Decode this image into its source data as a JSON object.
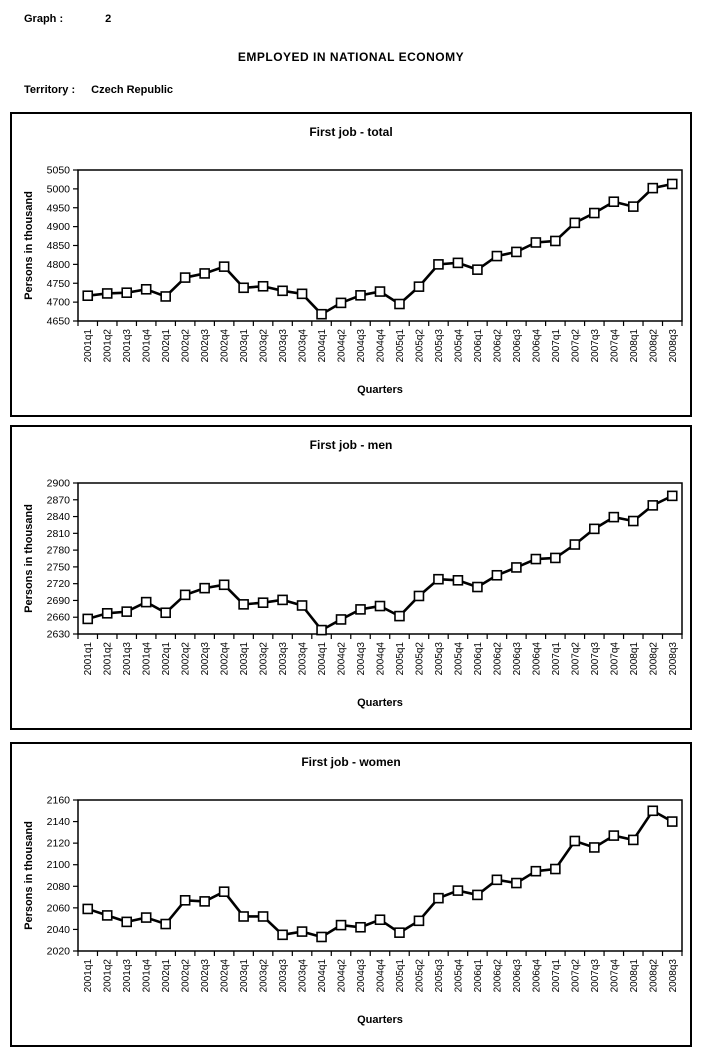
{
  "header": {
    "graph_label": "Graph :",
    "graph_number": "2",
    "title": "EMPLOYED IN NATIONAL ECONOMY",
    "territory_label": "Territory :",
    "territory_value": "Czech Republic"
  },
  "colors": {
    "line": "#000000",
    "marker_fill": "#ffffff",
    "marker_stroke": "#000000",
    "frame": "#000000",
    "text": "#000000"
  },
  "chart_data": [
    {
      "type": "line",
      "name": "total",
      "title": "First job - total",
      "xlabel": "Quarters",
      "ylabel": "Persons in thousand",
      "ylim": [
        4650,
        5050
      ],
      "ytick_step": 50,
      "grid": false,
      "legend": "none",
      "marker": "square",
      "categories": [
        "2001q1",
        "2001q2",
        "2001q3",
        "2001q4",
        "2002q1",
        "2002q2",
        "2002q3",
        "2002q4",
        "2003q1",
        "2003q2",
        "2003q3",
        "2003q4",
        "2004q1",
        "2004q2",
        "2004q3",
        "2004q4",
        "2005q1",
        "2005q2",
        "2005q3",
        "2005q4",
        "2006q1",
        "2006q2",
        "2006q3",
        "2006q4",
        "2007q1",
        "2007q2",
        "2007q3",
        "2007q4",
        "2008q1",
        "2008q2",
        "2008q3"
      ],
      "values": [
        4717,
        4723,
        4725,
        4734,
        4715,
        4765,
        4776,
        4794,
        4738,
        4742,
        4730,
        4722,
        4668,
        4698,
        4718,
        4728,
        4695,
        4741,
        4800,
        4804,
        4786,
        4822,
        4833,
        4858,
        4862,
        4910,
        4936,
        4966,
        4953,
        5002,
        5013
      ]
    },
    {
      "type": "line",
      "name": "men",
      "title": "First job - men",
      "xlabel": "Quarters",
      "ylabel": "Persons in thousand",
      "ylim": [
        2630,
        2900
      ],
      "ytick_step": 30,
      "grid": false,
      "legend": "none",
      "marker": "square",
      "categories": [
        "2001q1",
        "2001q2",
        "2001q3",
        "2001q4",
        "2002q1",
        "2002q2",
        "2002q3",
        "2002q4",
        "2003q1",
        "2003q2",
        "2003q3",
        "2003q4",
        "2004q1",
        "2004q2",
        "2004q3",
        "2004q4",
        "2005q1",
        "2005q2",
        "2005q3",
        "2005q4",
        "2006q1",
        "2006q2",
        "2006q3",
        "2006q4",
        "2007q1",
        "2007q2",
        "2007q3",
        "2007q4",
        "2008q1",
        "2008q2",
        "2008q3"
      ],
      "values": [
        2657,
        2667,
        2670,
        2687,
        2668,
        2700,
        2712,
        2718,
        2683,
        2686,
        2691,
        2681,
        2637,
        2656,
        2674,
        2680,
        2662,
        2698,
        2728,
        2726,
        2714,
        2735,
        2749,
        2764,
        2766,
        2790,
        2818,
        2839,
        2832,
        2860,
        2877
      ]
    },
    {
      "type": "line",
      "name": "women",
      "title": "First job - women",
      "xlabel": "Quarters",
      "ylabel": "Persons in thousand",
      "ylim": [
        2020,
        2160
      ],
      "ytick_step": 20,
      "grid": false,
      "legend": "none",
      "marker": "square",
      "categories": [
        "2001q1",
        "2001q2",
        "2001q3",
        "2001q4",
        "2002q1",
        "2002q2",
        "2002q3",
        "2002q4",
        "2003q1",
        "2003q2",
        "2003q3",
        "2003q4",
        "2004q1",
        "2004q2",
        "2004q3",
        "2004q4",
        "2005q1",
        "2005q2",
        "2005q3",
        "2005q4",
        "2006q1",
        "2006q2",
        "2006q3",
        "2006q4",
        "2007q1",
        "2007q2",
        "2007q3",
        "2007q4",
        "2008q1",
        "2008q2",
        "2008q3"
      ],
      "values": [
        2059,
        2053,
        2047,
        2051,
        2045,
        2067,
        2066,
        2075,
        2052,
        2052,
        2035,
        2038,
        2033,
        2044,
        2042,
        2049,
        2037,
        2048,
        2069,
        2076,
        2072,
        2086,
        2083,
        2094,
        2096,
        2122,
        2116,
        2127,
        2123,
        2150,
        2140
      ]
    }
  ]
}
